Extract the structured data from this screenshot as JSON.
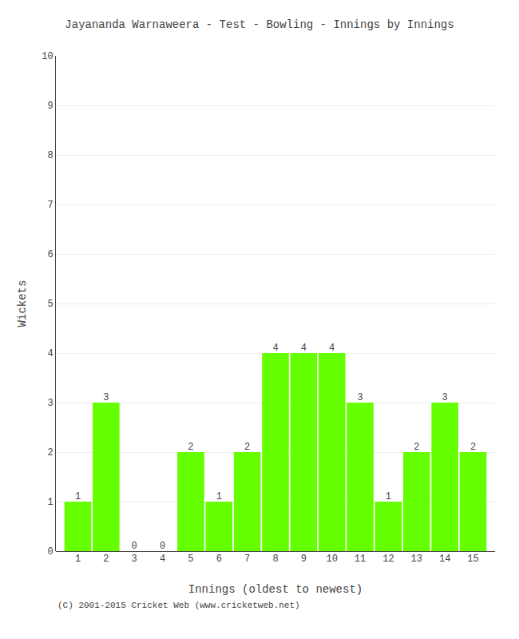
{
  "chart_data": {
    "type": "bar",
    "title": "Jayananda Warnaweera - Test - Bowling - Innings by Innings",
    "x_label": "Innings (oldest to newest)",
    "y_label": "Wickets",
    "categories": [
      "1",
      "2",
      "3",
      "4",
      "5",
      "6",
      "7",
      "8",
      "9",
      "10",
      "11",
      "12",
      "13",
      "14",
      "15"
    ],
    "values": [
      1,
      3,
      0,
      0,
      2,
      1,
      2,
      4,
      4,
      4,
      3,
      1,
      2,
      3,
      2
    ],
    "color": "#66ff00",
    "ylim": [
      0,
      10
    ],
    "yticks": [
      0,
      1,
      2,
      3,
      4,
      5,
      6,
      7,
      8,
      9,
      10
    ],
    "grid": true,
    "data_labels": true,
    "annotations": [
      "(C) 2001-2015 Cricket Web (www.cricketweb.net)"
    ]
  }
}
